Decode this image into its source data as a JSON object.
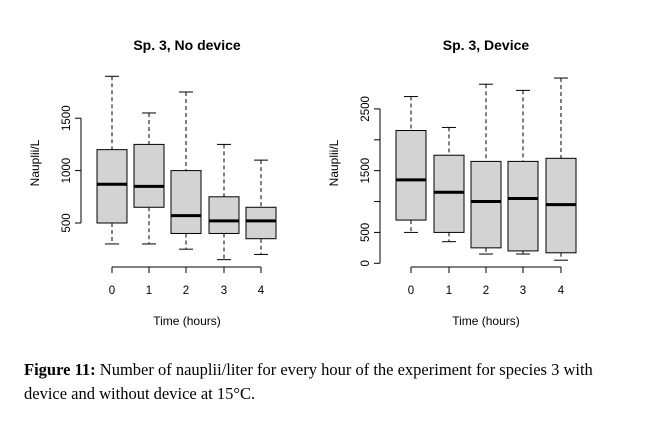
{
  "chart_data": [
    {
      "type": "boxplot",
      "title": "Sp. 3, No device",
      "xlabel": "Time (hours)",
      "ylabel": "Nauplii/L",
      "categories": [
        "0",
        "1",
        "2",
        "3",
        "4"
      ],
      "yticks": [
        "500",
        "1000",
        "1500"
      ],
      "ylim": [
        80,
        1960
      ],
      "boxes": [
        {
          "min": 300,
          "q1": 500,
          "median": 870,
          "q3": 1200,
          "max": 1900
        },
        {
          "min": 300,
          "q1": 650,
          "median": 850,
          "q3": 1250,
          "max": 1550
        },
        {
          "min": 250,
          "q1": 400,
          "median": 570,
          "q3": 1000,
          "max": 1750
        },
        {
          "min": 150,
          "q1": 400,
          "median": 520,
          "q3": 750,
          "max": 1250
        },
        {
          "min": 200,
          "q1": 350,
          "median": 520,
          "q3": 650,
          "max": 1100
        }
      ],
      "fill": "#d3d3d3"
    },
    {
      "type": "boxplot",
      "title": "Sp. 3, Device",
      "xlabel": "Time (hours)",
      "ylabel": "Nauplii/L",
      "categories": [
        "0",
        "1",
        "2",
        "3",
        "4"
      ],
      "yticks": [
        "0",
        "500",
        "1500",
        "2500"
      ],
      "ytick_values": [
        0,
        500,
        1500,
        2500
      ],
      "ylim": [
        -60,
        3130
      ],
      "boxes": [
        {
          "min": 500,
          "q1": 700,
          "median": 1350,
          "q3": 2150,
          "max": 2700
        },
        {
          "min": 350,
          "q1": 500,
          "median": 1150,
          "q3": 1750,
          "max": 2200
        },
        {
          "min": 150,
          "q1": 250,
          "median": 1000,
          "q3": 1650,
          "max": 2900
        },
        {
          "min": 150,
          "q1": 200,
          "median": 1050,
          "q3": 1650,
          "max": 2800
        },
        {
          "min": 50,
          "q1": 170,
          "median": 950,
          "q3": 1700,
          "max": 3000
        }
      ],
      "fill": "#d3d3d3"
    }
  ],
  "caption": {
    "label": "Figure 11:",
    "text": " Number of nauplii/liter for every hour of the experiment for species 3 with device and without device at 15°C."
  }
}
